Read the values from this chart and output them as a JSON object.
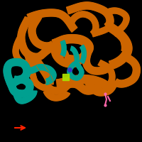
{
  "background_color": "#000000",
  "fig_size": [
    2.0,
    2.0
  ],
  "dpi": 100,
  "orange": "#CC6500",
  "teal": "#00A090",
  "yellow_green": "#AADD00",
  "pink": "#FF66AA",
  "blue_ion": "#3333CC",
  "red_arrow": "#FF2200",
  "blue_arrow": "#2222FF",
  "lw_ribbon": 2.8,
  "lw_thin": 1.4
}
